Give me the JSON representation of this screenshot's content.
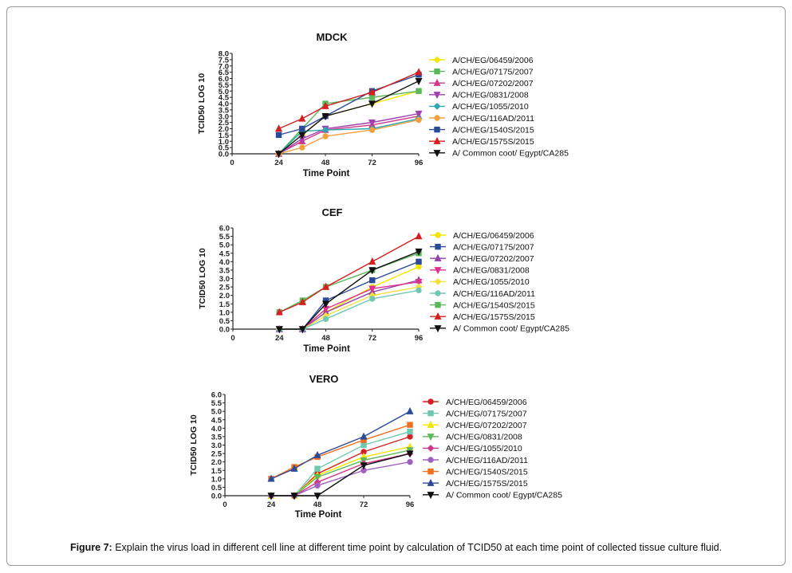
{
  "chart_data": [
    {
      "type": "line",
      "title": "MDCK",
      "xlabel": "Time Point",
      "ylabel": "TCID50 LOG 10",
      "x_ticks": [
        "0",
        "24",
        "48",
        "72",
        "96"
      ],
      "y_ticks": [
        "0.0",
        "0.5",
        "1.0",
        "1.5",
        "2.0",
        "2.5",
        "3.0",
        "3.5",
        "4.0",
        "4.5",
        "5.0",
        "5.5",
        "6.0",
        "6.5",
        "7.0",
        "7.5",
        "8.0"
      ],
      "xlim": [
        0,
        96
      ],
      "ylim": [
        0,
        8
      ],
      "legend": "right",
      "series": [
        {
          "name": "A/CH/EG/06459/2006",
          "color": "#f2e600",
          "marker": "diamond",
          "x": [
            24,
            36,
            48,
            72,
            96
          ],
          "y": [
            0,
            1.5,
            3.0,
            4.0,
            5.0
          ]
        },
        {
          "name": "A/CH/EG/07175/2007",
          "color": "#5cb85c",
          "marker": "square",
          "x": [
            24,
            36,
            48,
            72,
            96
          ],
          "y": [
            0,
            2.0,
            4.0,
            4.5,
            5.0
          ]
        },
        {
          "name": "A/CH/EG/07202/2007",
          "color": "#d0398a",
          "marker": "triangle-up",
          "x": [
            24,
            36,
            48,
            72,
            96
          ],
          "y": [
            0,
            1.0,
            1.9,
            2.3,
            3.0
          ]
        },
        {
          "name": "A/CH/EG/0831/2008",
          "color": "#a040b0",
          "marker": "triangle-down",
          "x": [
            24,
            36,
            48,
            72,
            96
          ],
          "y": [
            0,
            1.2,
            2.0,
            2.5,
            3.2
          ]
        },
        {
          "name": "A/CH/EG/1055/2010",
          "color": "#2aa8b0",
          "marker": "diamond",
          "x": [
            24,
            36,
            48,
            72,
            96
          ],
          "y": [
            0,
            1.8,
            1.9,
            2.0,
            2.8
          ]
        },
        {
          "name": "A/CH/EG/116AD/2011",
          "color": "#f0a040",
          "marker": "circle",
          "x": [
            24,
            36,
            48,
            72,
            96
          ],
          "y": [
            0,
            0.5,
            1.4,
            1.9,
            2.7
          ]
        },
        {
          "name": "A/CH/EG/1540S/2015",
          "color": "#2c4a9a",
          "marker": "square",
          "x": [
            24,
            36,
            48,
            72,
            96
          ],
          "y": [
            1.5,
            2.0,
            3.0,
            5.0,
            6.3
          ]
        },
        {
          "name": "A/CH/EG/1575S/2015",
          "color": "#d42020",
          "marker": "triangle-up",
          "x": [
            24,
            36,
            48,
            72,
            96
          ],
          "y": [
            2.0,
            2.8,
            3.8,
            4.9,
            6.5
          ]
        },
        {
          "name": "A/ Common coot/ Egypt/CA285",
          "color": "#111111",
          "marker": "triangle-down",
          "x": [
            24,
            36,
            48,
            72,
            96
          ],
          "y": [
            0,
            1.5,
            3.0,
            4.0,
            5.8
          ]
        }
      ]
    },
    {
      "type": "line",
      "title": "CEF",
      "xlabel": "Time Point",
      "ylabel": "TCID50 LOG 10",
      "x_ticks": [
        "0",
        "24",
        "48",
        "72",
        "96"
      ],
      "y_ticks": [
        "0.0",
        "0.5",
        "1.0",
        "1.5",
        "2.0",
        "2.5",
        "3.0",
        "3.5",
        "4.0",
        "4.5",
        "5.0",
        "5.5",
        "6.0"
      ],
      "xlim": [
        0,
        96
      ],
      "ylim": [
        0,
        6
      ],
      "legend": "right",
      "series": [
        {
          "name": "A/CH/EG/06459/2006",
          "color": "#f2e600",
          "marker": "circle",
          "x": [
            24,
            36,
            48,
            72,
            96
          ],
          "y": [
            0,
            0,
            1.0,
            2.5,
            3.7
          ]
        },
        {
          "name": "A/CH/EG/07175/2007",
          "color": "#2c4a9a",
          "marker": "square",
          "x": [
            24,
            36,
            48,
            72,
            96
          ],
          "y": [
            0,
            0,
            1.7,
            2.9,
            4.0
          ]
        },
        {
          "name": "A/CH/EG/07202/2007",
          "color": "#9040a8",
          "marker": "triangle-up",
          "x": [
            24,
            36,
            48,
            72,
            96
          ],
          "y": [
            0,
            0,
            1.0,
            2.2,
            2.9
          ]
        },
        {
          "name": "A/CH/EG/0831/2008",
          "color": "#e03090",
          "marker": "triangle-down",
          "x": [
            24,
            36,
            48,
            72,
            96
          ],
          "y": [
            0,
            0,
            1.2,
            2.4,
            2.8
          ]
        },
        {
          "name": "A/CH/EG/1055/2010",
          "color": "#f0e040",
          "marker": "diamond",
          "x": [
            24,
            36,
            48,
            72,
            96
          ],
          "y": [
            0,
            0,
            0.8,
            2.0,
            2.5
          ]
        },
        {
          "name": "A/CH/EG/116AD/2011",
          "color": "#70c8b0",
          "marker": "circle",
          "x": [
            24,
            36,
            48,
            72,
            96
          ],
          "y": [
            0,
            0,
            0.6,
            1.8,
            2.3
          ]
        },
        {
          "name": "A/CH/EG/1540S/2015",
          "color": "#5cb85c",
          "marker": "square",
          "x": [
            24,
            36,
            48,
            72,
            96
          ],
          "y": [
            1.0,
            1.7,
            2.5,
            3.5,
            4.5
          ]
        },
        {
          "name": "A/CH/EG/1575S/2015",
          "color": "#d42020",
          "marker": "triangle-up",
          "x": [
            24,
            36,
            48,
            72,
            96
          ],
          "y": [
            1.0,
            1.6,
            2.5,
            4.0,
            5.5
          ]
        },
        {
          "name": "A/ Common coot/ Egypt/CA285",
          "color": "#111111",
          "marker": "triangle-down",
          "x": [
            24,
            36,
            48,
            72,
            96
          ],
          "y": [
            0,
            0,
            1.5,
            3.5,
            4.6
          ]
        }
      ]
    },
    {
      "type": "line",
      "title": "VERO",
      "xlabel": "Time Point",
      "ylabel": "TCID50 LOG 10",
      "x_ticks": [
        "0",
        "24",
        "48",
        "72",
        "96"
      ],
      "y_ticks": [
        "0.0",
        "0.5",
        "1.0",
        "1.5",
        "2.0",
        "2.5",
        "3.0",
        "3.5",
        "4.0",
        "4.5",
        "5.0",
        "5.5",
        "6.0"
      ],
      "xlim": [
        0,
        96
      ],
      "ylim": [
        0,
        6
      ],
      "legend": "right",
      "series": [
        {
          "name": "A/CH/EG/06459/2006",
          "color": "#d42020",
          "marker": "circle",
          "x": [
            24,
            36,
            48,
            72,
            96
          ],
          "y": [
            0,
            0,
            1.3,
            2.6,
            3.5
          ]
        },
        {
          "name": "A/CH/EG/07175/2007",
          "color": "#70c8b0",
          "marker": "square",
          "x": [
            24,
            36,
            48,
            72,
            96
          ],
          "y": [
            0,
            0,
            1.6,
            3.0,
            3.8
          ]
        },
        {
          "name": "A/CH/EG/07202/2007",
          "color": "#f2e600",
          "marker": "triangle-up",
          "x": [
            24,
            36,
            48,
            72,
            96
          ],
          "y": [
            0,
            0,
            1.2,
            2.3,
            2.9
          ]
        },
        {
          "name": "A/CH/EG/0831/2008",
          "color": "#5cb85c",
          "marker": "triangle-down",
          "x": [
            24,
            36,
            48,
            72,
            96
          ],
          "y": [
            0,
            0,
            1.1,
            2.1,
            2.7
          ]
        },
        {
          "name": "A/CH/EG/1055/2010",
          "color": "#d0398a",
          "marker": "diamond",
          "x": [
            24,
            36,
            48,
            72,
            96
          ],
          "y": [
            0,
            0,
            0.8,
            1.9,
            2.5
          ]
        },
        {
          "name": "A/CH/EG/116AD/2011",
          "color": "#a060c0",
          "marker": "circle",
          "x": [
            24,
            36,
            48,
            72,
            96
          ],
          "y": [
            0,
            0,
            0.6,
            1.5,
            2.0
          ]
        },
        {
          "name": "A/CH/EG/1540S/2015",
          "color": "#f07020",
          "marker": "square",
          "x": [
            24,
            36,
            48,
            72,
            96
          ],
          "y": [
            1.0,
            1.7,
            2.3,
            3.3,
            4.2
          ]
        },
        {
          "name": "A/CH/EG/1575S/2015",
          "color": "#2c4a9a",
          "marker": "triangle-up",
          "x": [
            24,
            36,
            48,
            72,
            96
          ],
          "y": [
            1.0,
            1.6,
            2.4,
            3.5,
            5.0
          ]
        },
        {
          "name": "A/ Common coot/ Egypt/CA285",
          "color": "#111111",
          "marker": "triangle-down",
          "x": [
            24,
            36,
            48,
            72,
            96
          ],
          "y": [
            0,
            0,
            0,
            1.8,
            2.5
          ]
        }
      ]
    }
  ],
  "caption": {
    "label": "Figure 7:",
    "text": " Explain the virus load in different cell line at different time point by calculation of TCID50 at each time point of collected tissue culture fluid."
  }
}
